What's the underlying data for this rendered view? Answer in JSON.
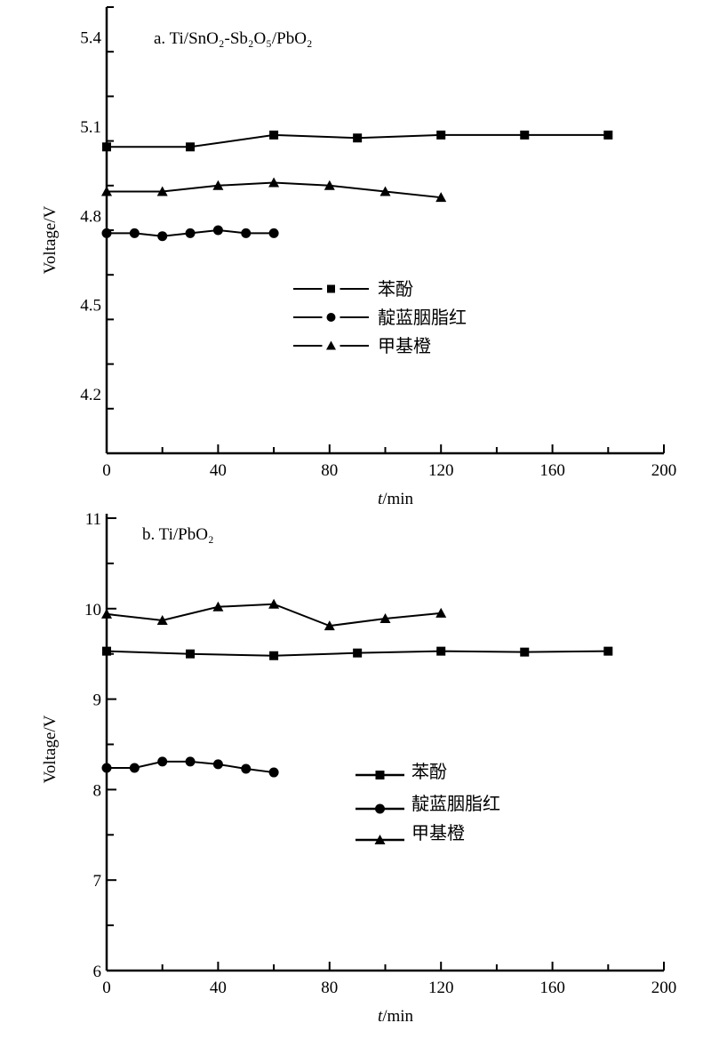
{
  "chart_data": [
    {
      "type": "line",
      "title": "a. Ti/SnO₂-Sb₂O₅/PbO₂",
      "xlabel_italic": "t",
      "xlabel_rest": "/min",
      "ylabel": "Voltage/V",
      "xlim": [
        0,
        200
      ],
      "ylim": [
        4.0,
        5.5
      ],
      "xticks": [
        0,
        40,
        80,
        120,
        160,
        200
      ],
      "yticks": [
        4.2,
        4.5,
        4.8,
        5.1,
        5.4
      ],
      "ytick_labels": [
        "4.2",
        "4.5",
        "4.8",
        "5.1",
        "5.4"
      ],
      "grid": false,
      "legend_position": "center",
      "line_style": "dashed-legend",
      "series": [
        {
          "name": "苯酚",
          "marker": "square",
          "x": [
            0,
            30,
            60,
            90,
            120,
            150,
            180
          ],
          "y": [
            5.03,
            5.03,
            5.07,
            5.06,
            5.07,
            5.07,
            5.07
          ]
        },
        {
          "name": "靛蓝胭脂红",
          "marker": "circle",
          "x": [
            0,
            10,
            20,
            30,
            40,
            50,
            60
          ],
          "y": [
            4.74,
            4.74,
            4.73,
            4.74,
            4.75,
            4.74,
            4.74
          ]
        },
        {
          "name": "甲基橙",
          "marker": "triangle",
          "x": [
            0,
            20,
            40,
            60,
            80,
            100,
            120
          ],
          "y": [
            4.88,
            4.88,
            4.9,
            4.91,
            4.9,
            4.88,
            4.86
          ]
        }
      ]
    },
    {
      "type": "line",
      "title": "b. Ti/PbO₂",
      "xlabel_italic": "t",
      "xlabel_rest": "/min",
      "ylabel": "Voltage/V",
      "xlim": [
        0,
        200
      ],
      "ylim": [
        6,
        11
      ],
      "xticks": [
        0,
        40,
        80,
        120,
        160,
        200
      ],
      "yticks": [
        6,
        7,
        8,
        9,
        10,
        11
      ],
      "ytick_labels": [
        "6",
        "7",
        "8",
        "9",
        "10",
        "11"
      ],
      "grid": false,
      "legend_position": "center-right",
      "line_style": "solid-legend",
      "series": [
        {
          "name": "苯酚",
          "marker": "square",
          "x": [
            0,
            30,
            60,
            90,
            120,
            150,
            180
          ],
          "y": [
            9.53,
            9.5,
            9.48,
            9.51,
            9.53,
            9.52,
            9.53
          ]
        },
        {
          "name": "靛蓝胭脂红",
          "marker": "circle",
          "x": [
            0,
            10,
            20,
            30,
            40,
            50,
            60
          ],
          "y": [
            8.24,
            8.24,
            8.31,
            8.31,
            8.28,
            8.23,
            8.19
          ]
        },
        {
          "name": "甲基橙",
          "marker": "triangle",
          "x": [
            0,
            20,
            40,
            60,
            80,
            100,
            120
          ],
          "y": [
            9.94,
            9.87,
            10.02,
            10.05,
            9.81,
            9.89,
            9.95
          ]
        }
      ]
    }
  ]
}
